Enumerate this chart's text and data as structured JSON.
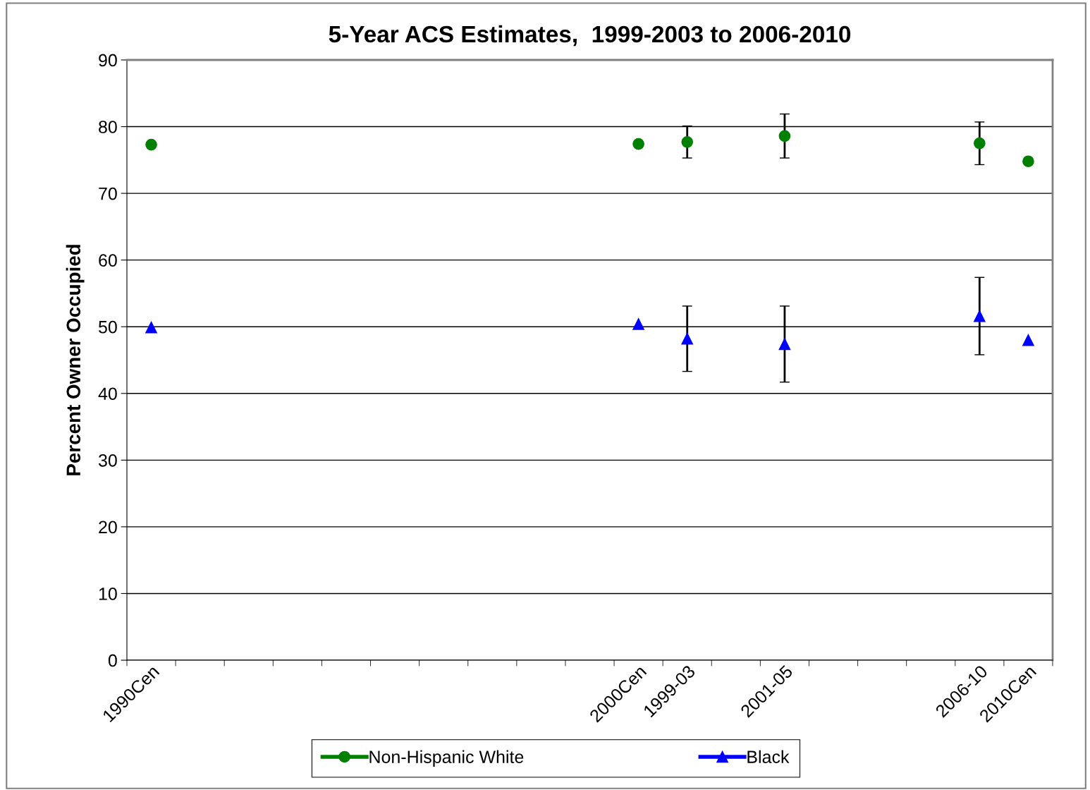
{
  "chart_data": {
    "type": "scatter",
    "title": "5-Year ACS Estimates,  1999-2003 to 2006-2010",
    "ylabel": "Percent Owner Occupied",
    "categories": [
      "1990Cen",
      null,
      null,
      null,
      null,
      null,
      null,
      null,
      null,
      null,
      "2000Cen",
      "1999-03",
      null,
      "2001-05",
      null,
      null,
      null,
      "2006-10",
      "2010Cen"
    ],
    "series": [
      {
        "name": "Non-Hispanic White",
        "color": "#008000",
        "marker": "circle",
        "values": [
          77.3,
          null,
          null,
          null,
          null,
          null,
          null,
          null,
          null,
          null,
          77.4,
          77.7,
          null,
          78.6,
          null,
          null,
          null,
          77.5,
          74.8
        ],
        "errors": [
          null,
          null,
          null,
          null,
          null,
          null,
          null,
          null,
          null,
          null,
          null,
          2.4,
          null,
          3.3,
          null,
          null,
          null,
          3.2,
          null
        ]
      },
      {
        "name": "Black",
        "color": "#0000ff",
        "marker": "triangle",
        "values": [
          49.9,
          null,
          null,
          null,
          null,
          null,
          null,
          null,
          null,
          null,
          50.4,
          48.2,
          null,
          47.4,
          null,
          null,
          null,
          51.6,
          48.0
        ],
        "errors": [
          null,
          null,
          null,
          null,
          null,
          null,
          null,
          null,
          null,
          null,
          null,
          4.9,
          null,
          5.7,
          null,
          null,
          null,
          5.8,
          null
        ]
      }
    ],
    "ylim": [
      0,
      90
    ],
    "yticks": [
      0,
      10,
      20,
      30,
      40,
      50,
      60,
      70,
      80,
      90
    ],
    "grid": "y",
    "legend": "bottom"
  }
}
